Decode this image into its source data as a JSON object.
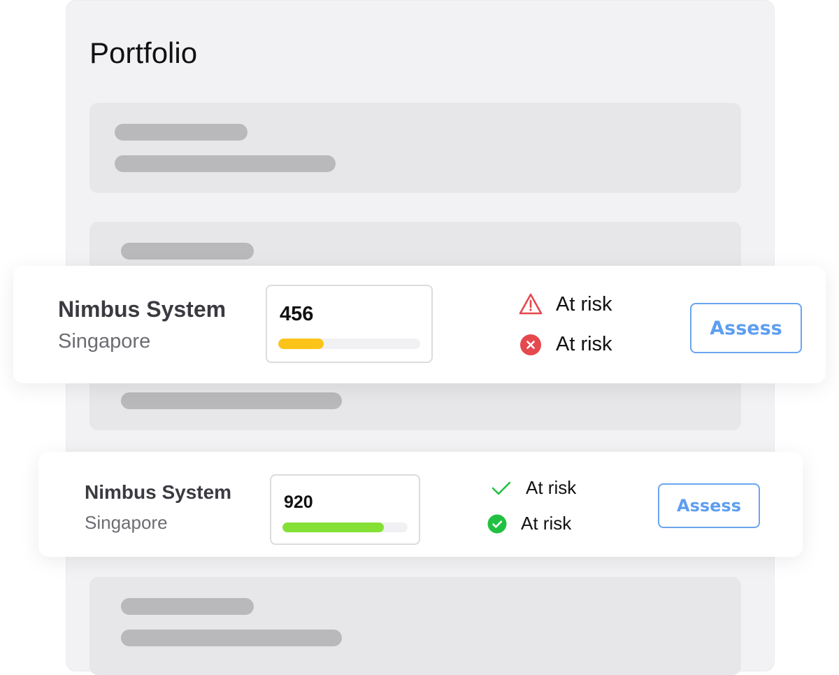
{
  "page": {
    "title": "Portfolio"
  },
  "cards": [
    {
      "name": "Nimbus System",
      "location": "Singapore",
      "score": "456",
      "progress": 0.32,
      "progress_color": "#fcc419",
      "statuses": [
        {
          "icon": "warning-triangle-icon",
          "label": "At risk",
          "color": "#e5484d"
        },
        {
          "icon": "error-circle-icon",
          "label": "At risk",
          "color": "#e5484d"
        }
      ],
      "button": "Assess"
    },
    {
      "name": "Nimbus System",
      "location": "Singapore",
      "score": "920",
      "progress": 0.81,
      "progress_color": "#84e035",
      "statuses": [
        {
          "icon": "check-icon",
          "label": "At risk",
          "color": "#22c042"
        },
        {
          "icon": "check-circle-icon",
          "label": "At risk",
          "color": "#22c042"
        }
      ],
      "button": "Assess"
    }
  ]
}
